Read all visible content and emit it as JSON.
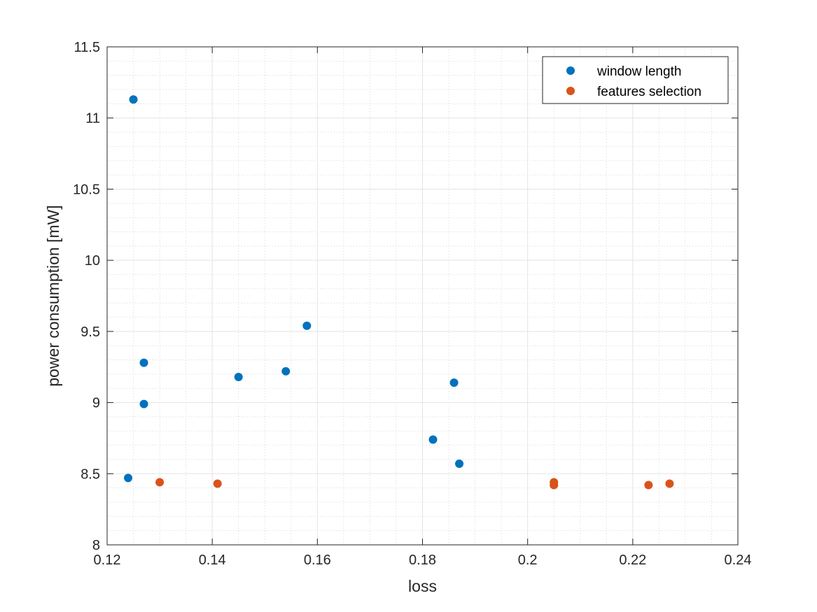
{
  "chart_data": {
    "type": "scatter",
    "title": "",
    "xlabel": "loss",
    "ylabel": "power consumption [mW]",
    "xlim": [
      0.12,
      0.24
    ],
    "ylim": [
      8,
      11.5
    ],
    "x_ticks": [
      "0.12",
      "0.14",
      "0.16",
      "0.18",
      "0.2",
      "0.22",
      "0.24"
    ],
    "y_ticks": [
      "8",
      "8.5",
      "9",
      "9.5",
      "10",
      "10.5",
      "11",
      "11.5"
    ],
    "grid": true,
    "minor_grid": true,
    "legend_position": "top-right",
    "series": [
      {
        "name": "window length",
        "color": "#0072BD",
        "points": [
          {
            "x": 0.125,
            "y": 11.13
          },
          {
            "x": 0.124,
            "y": 8.47
          },
          {
            "x": 0.127,
            "y": 9.28
          },
          {
            "x": 0.127,
            "y": 8.99
          },
          {
            "x": 0.145,
            "y": 9.18
          },
          {
            "x": 0.154,
            "y": 9.22
          },
          {
            "x": 0.158,
            "y": 9.54
          },
          {
            "x": 0.182,
            "y": 8.74
          },
          {
            "x": 0.186,
            "y": 9.14
          },
          {
            "x": 0.187,
            "y": 8.57
          }
        ]
      },
      {
        "name": "features selection",
        "color": "#D95319",
        "points": [
          {
            "x": 0.13,
            "y": 8.44
          },
          {
            "x": 0.141,
            "y": 8.43
          },
          {
            "x": 0.205,
            "y": 8.44
          },
          {
            "x": 0.205,
            "y": 8.42
          },
          {
            "x": 0.223,
            "y": 8.42
          },
          {
            "x": 0.227,
            "y": 8.43
          }
        ]
      }
    ]
  }
}
